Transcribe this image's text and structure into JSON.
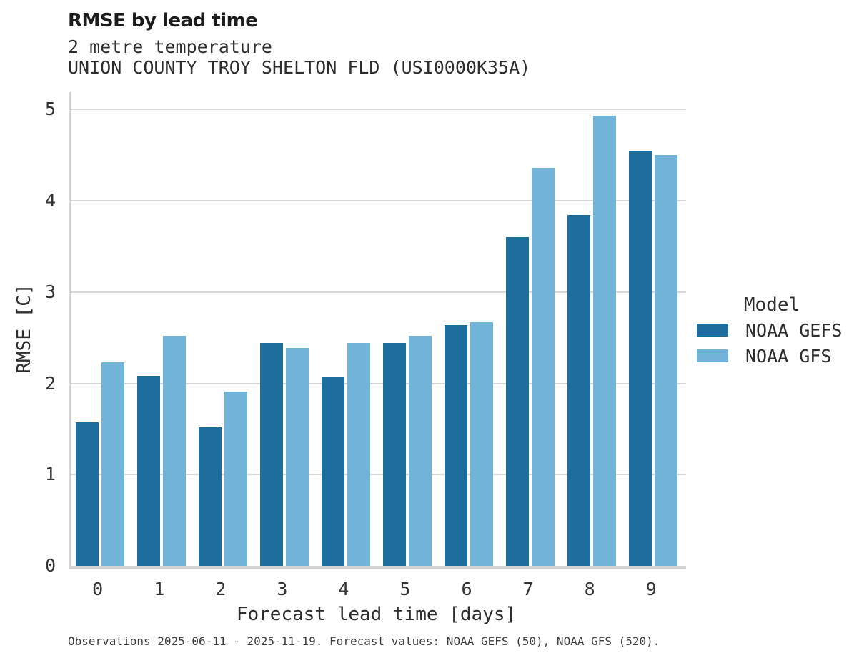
{
  "chart_data": {
    "type": "bar",
    "title": "RMSE by lead time",
    "subtitle_lines": [
      "2 metre temperature",
      "UNION COUNTY TROY SHELTON FLD (USI0000K35A)"
    ],
    "xlabel": "Forecast lead time [days]",
    "ylabel": "RMSE [C]",
    "categories": [
      "0",
      "1",
      "2",
      "3",
      "4",
      "5",
      "6",
      "7",
      "8",
      "9"
    ],
    "series": [
      {
        "name": "NOAA GEFS",
        "color": "#1d6e9d",
        "values": [
          1.57,
          2.08,
          1.52,
          2.44,
          2.07,
          2.44,
          2.64,
          3.6,
          3.84,
          4.55
        ]
      },
      {
        "name": "NOAA GFS",
        "color": "#72b3d9",
        "values": [
          2.23,
          2.52,
          1.91,
          2.39,
          2.44,
          2.52,
          2.67,
          4.36,
          4.93,
          4.5
        ]
      }
    ],
    "ylim": [
      0,
      5.19
    ],
    "yticks": [
      0,
      1,
      2,
      3,
      4,
      5
    ],
    "grid": "horizontal",
    "legend_position": "right",
    "legend": {
      "title": "Model"
    },
    "caption": "Observations 2025-06-11 - 2025-11-19. Forecast values: NOAA GEFS (50), NOAA GFS (520)."
  },
  "colors": {
    "gridline": "#d8d8d8",
    "spine": "#d2d2d2",
    "background": "#ffffff"
  }
}
